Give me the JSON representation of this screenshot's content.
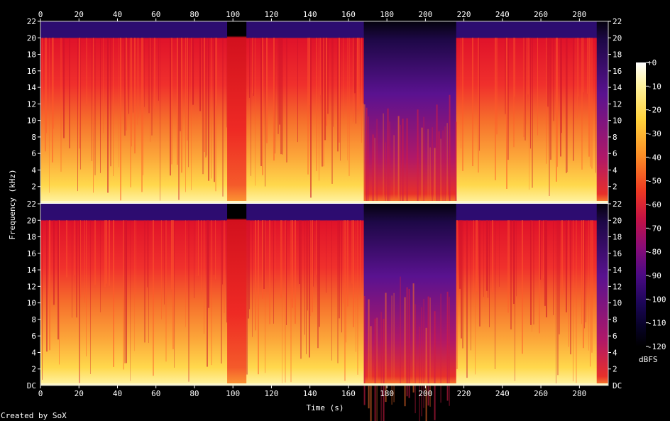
{
  "chart_data": {
    "type": "heatmap",
    "xlabel": "Time (s)",
    "ylabel": "Frequency (kHz)",
    "xlim": [
      0,
      295
    ],
    "ylim_khz": [
      0,
      22
    ],
    "x_ticks": [
      "0",
      "20",
      "40",
      "60",
      "80",
      "100",
      "120",
      "140",
      "160",
      "180",
      "200",
      "220",
      "240",
      "260",
      "280"
    ],
    "y_ticks": [
      "2",
      "4",
      "6",
      "8",
      "10",
      "12",
      "14",
      "16",
      "18",
      "20",
      "22"
    ],
    "bottom_label": "DC",
    "channels": 2,
    "colorbar": {
      "label": "dBFS",
      "ticks": [
        "+0",
        "-10",
        "-20",
        "-30",
        "-40",
        "-50",
        "-60",
        "-70",
        "-80",
        "-90",
        "-100",
        "-110",
        "-120"
      ]
    },
    "lowpass_cutoff_khz": 20,
    "quiet_sections_s": [
      [
        97,
        107
      ],
      [
        168,
        216
      ]
    ],
    "fade_out_start_s": 289
  },
  "footer": "Created by SoX"
}
